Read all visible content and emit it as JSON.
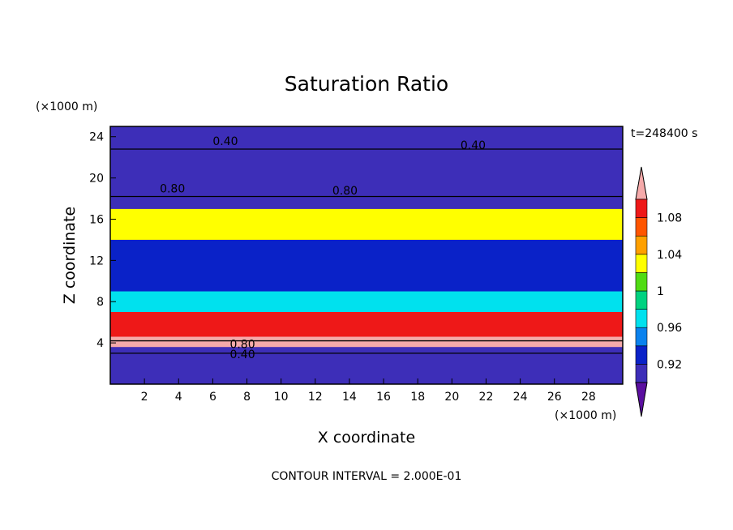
{
  "chart_data": {
    "type": "heatmap",
    "title": "Saturation Ratio",
    "xlabel": "X coordinate",
    "ylabel": "Z coordinate",
    "x_unit": "(×1000 m)",
    "y_unit": "(×1000 m)",
    "time_label": "t=248400 s",
    "footer": "CONTOUR INTERVAL = 2.000E-01",
    "xlim": [
      0,
      30
    ],
    "ylim": [
      0,
      25
    ],
    "x_ticks": [
      "2",
      "4",
      "6",
      "8",
      "10",
      "12",
      "14",
      "16",
      "18",
      "20",
      "22",
      "24",
      "26",
      "28"
    ],
    "y_ticks": [
      "4",
      "8",
      "12",
      "16",
      "20",
      "24"
    ],
    "colorbar": {
      "levels": [
        0.9,
        0.92,
        0.94,
        0.96,
        0.98,
        1.0,
        1.02,
        1.04,
        1.06,
        1.08,
        1.1
      ],
      "tick_labels": [
        "0.92",
        "0.96",
        "1",
        "1.04",
        "1.08"
      ],
      "colors": [
        "#5b0fa0",
        "#3d2eb8",
        "#0a22c8",
        "#0a82ee",
        "#00e1ee",
        "#00d280",
        "#50dc14",
        "#ffff00",
        "#ffa000",
        "#ff5500",
        "#ee1818",
        "#f5aaaa"
      ]
    },
    "contour_labels": [
      "0.40",
      "0.40",
      "0.80",
      "0.80",
      "0.80",
      "0.40"
    ],
    "bands": [
      {
        "z": [
          0.0,
          3.6
        ],
        "level": 0.9
      },
      {
        "z": [
          3.6,
          4.6
        ],
        "level": 1.1
      },
      {
        "z": [
          4.6,
          7.0
        ],
        "level": 1.08
      },
      {
        "z": [
          7.0,
          9.0
        ],
        "level": 0.96
      },
      {
        "z": [
          9.0,
          14.0
        ],
        "level": 0.92
      },
      {
        "z": [
          14.0,
          17.0
        ],
        "level": 1.02
      },
      {
        "z": [
          17.0,
          25.0
        ],
        "level": 0.9
      }
    ]
  }
}
